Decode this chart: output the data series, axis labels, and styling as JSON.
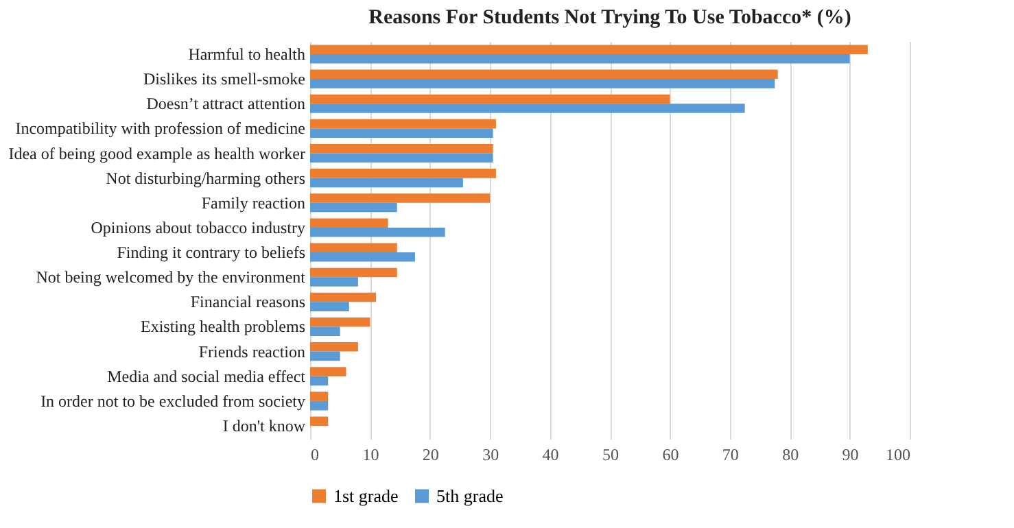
{
  "chart_data": {
    "type": "bar",
    "orientation": "horizontal",
    "title": "Reasons For Students Not Trying To Use Tobacco* (%)",
    "categories": [
      "Harmful to health",
      "Dislikes its smell-smoke",
      "Doesn’t attract attention",
      "Incompatibility with profession of medicine",
      "Idea of being good example as health worker",
      "Not disturbing/harming others",
      "Family reaction",
      "Opinions about tobacco industry",
      "Finding it contrary to beliefs",
      "Not being welcomed by the environment",
      "Financial reasons",
      "Existing health problems",
      "Friends reaction",
      "Media and social media effect",
      "In order not to be excluded from society",
      "I don't know"
    ],
    "series": [
      {
        "name": "1st grade",
        "color": "#ed7d31",
        "values": [
          93,
          78,
          60,
          31,
          30.5,
          31,
          30,
          13,
          14.5,
          14.5,
          11,
          10,
          8,
          6,
          3,
          3
        ]
      },
      {
        "name": "5th grade",
        "color": "#5b9bd5",
        "values": [
          90,
          77.5,
          72.5,
          30.5,
          30.5,
          25.5,
          14.5,
          22.5,
          17.5,
          8,
          6.5,
          5,
          5,
          3,
          3,
          null
        ]
      }
    ],
    "xlim": [
      0,
      100
    ],
    "xticks": [
      0,
      10,
      20,
      30,
      40,
      50,
      60,
      70,
      80,
      90,
      100
    ],
    "grid": "x",
    "legend": "bottom"
  }
}
